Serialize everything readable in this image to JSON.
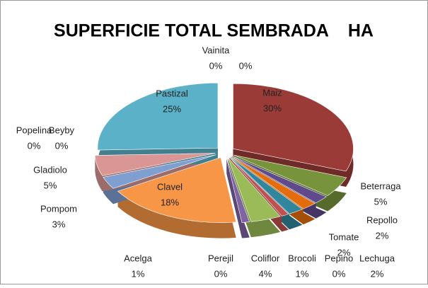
{
  "chart_data": {
    "type": "pie",
    "title": "SUPERFICIE TOTAL SEMBRADA    HA",
    "categories": [
      "Maiz",
      "Beterraga",
      "Repollo",
      "Lechuga",
      "Tomate",
      "Pepino",
      "Brocoli",
      "Coliflor",
      "Perejil",
      "Acelga",
      "Clavel",
      "Pompom",
      "Gladiolo",
      "Popelina",
      "Beyby",
      "Pastizal",
      "Vainita",
      null
    ],
    "values": [
      30,
      5,
      2,
      2,
      2,
      0,
      1,
      4,
      0,
      1,
      18,
      3,
      5,
      0,
      0,
      25,
      0,
      0
    ],
    "value_labels": [
      "30%",
      "5%",
      "2%",
      "2%",
      "2%",
      "0%",
      "1%",
      "4%",
      "0%",
      "1%",
      "18%",
      "3%",
      "5%",
      "0%",
      "0%",
      "25%",
      "0%",
      "0%"
    ],
    "colors": [
      "#9b3b38",
      "#77933c",
      "#5f4a8b",
      "#e46c0a",
      "#31859c",
      "#4f81bd",
      "#c0504d",
      "#9bbb59",
      "#4bacc6",
      "#8064a2",
      "#f79646",
      "#7f9fd0",
      "#d99694",
      "#9bbb59",
      "#77933c",
      "#5bb1c7",
      "#4bacc6",
      "#c0504d"
    ]
  }
}
